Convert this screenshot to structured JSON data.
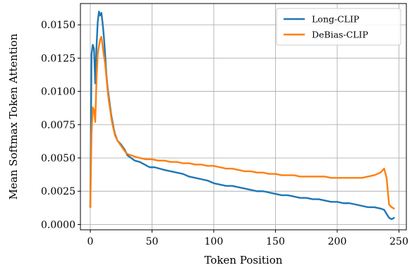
{
  "chart_data": {
    "type": "line",
    "xlabel": "Token Position",
    "ylabel": "Mean Softmax Token Attention",
    "xlim": [
      -8,
      256
    ],
    "ylim": [
      -0.0004,
      0.0166
    ],
    "xticks": [
      0,
      50,
      100,
      150,
      200,
      250
    ],
    "xtick_labels": [
      "0",
      "50",
      "100",
      "150",
      "200",
      "250"
    ],
    "yticks": [
      0.0,
      0.0025,
      0.005,
      0.0075,
      0.01,
      0.0125,
      0.015
    ],
    "ytick_labels": [
      "0.0000",
      "0.0025",
      "0.0050",
      "0.0075",
      "0.0100",
      "0.0125",
      "0.0150"
    ],
    "grid": true,
    "legend_position": "top-right",
    "series": [
      {
        "name": "Long-CLIP",
        "color": "#1f77b4",
        "points": [
          [
            0,
            0.0013
          ],
          [
            1,
            0.0128
          ],
          [
            2,
            0.0135
          ],
          [
            3,
            0.0132
          ],
          [
            4,
            0.0106
          ],
          [
            5,
            0.0133
          ],
          [
            6,
            0.0152
          ],
          [
            7,
            0.016
          ],
          [
            8,
            0.0157
          ],
          [
            9,
            0.0159
          ],
          [
            10,
            0.0151
          ],
          [
            11,
            0.0141
          ],
          [
            12,
            0.0128
          ],
          [
            13,
            0.0113
          ],
          [
            14,
            0.0103
          ],
          [
            15,
            0.0096
          ],
          [
            16,
            0.0089
          ],
          [
            17,
            0.0082
          ],
          [
            18,
            0.0077
          ],
          [
            19,
            0.0072
          ],
          [
            20,
            0.0068
          ],
          [
            22,
            0.0063
          ],
          [
            25,
            0.006
          ],
          [
            28,
            0.0056
          ],
          [
            30,
            0.0052
          ],
          [
            33,
            0.005
          ],
          [
            36,
            0.0048
          ],
          [
            40,
            0.0047
          ],
          [
            44,
            0.0045
          ],
          [
            48,
            0.0043
          ],
          [
            52,
            0.0043
          ],
          [
            56,
            0.0042
          ],
          [
            60,
            0.0041
          ],
          [
            65,
            0.004
          ],
          [
            70,
            0.0039
          ],
          [
            75,
            0.0038
          ],
          [
            80,
            0.0036
          ],
          [
            85,
            0.0035
          ],
          [
            90,
            0.0034
          ],
          [
            95,
            0.0033
          ],
          [
            100,
            0.0031
          ],
          [
            105,
            0.003
          ],
          [
            110,
            0.0029
          ],
          [
            115,
            0.0029
          ],
          [
            120,
            0.0028
          ],
          [
            125,
            0.0027
          ],
          [
            130,
            0.0026
          ],
          [
            135,
            0.0025
          ],
          [
            140,
            0.0025
          ],
          [
            145,
            0.0024
          ],
          [
            150,
            0.0023
          ],
          [
            155,
            0.0022
          ],
          [
            160,
            0.0022
          ],
          [
            165,
            0.0021
          ],
          [
            170,
            0.002
          ],
          [
            175,
            0.002
          ],
          [
            180,
            0.0019
          ],
          [
            185,
            0.0019
          ],
          [
            190,
            0.0018
          ],
          [
            195,
            0.0017
          ],
          [
            200,
            0.0017
          ],
          [
            205,
            0.0016
          ],
          [
            210,
            0.0016
          ],
          [
            215,
            0.0015
          ],
          [
            220,
            0.0014
          ],
          [
            225,
            0.0013
          ],
          [
            230,
            0.0013
          ],
          [
            235,
            0.0012
          ],
          [
            238,
            0.0011
          ],
          [
            240,
            0.0008
          ],
          [
            242,
            0.0005
          ],
          [
            244,
            0.0004
          ],
          [
            246,
            0.0005
          ]
        ]
      },
      {
        "name": "DeBias-CLIP",
        "color": "#ff7f0e",
        "points": [
          [
            0,
            0.0013
          ],
          [
            1,
            0.0068
          ],
          [
            2,
            0.0088
          ],
          [
            3,
            0.0086
          ],
          [
            4,
            0.0077
          ],
          [
            5,
            0.0108
          ],
          [
            6,
            0.0128
          ],
          [
            7,
            0.0134
          ],
          [
            8,
            0.0139
          ],
          [
            9,
            0.0141
          ],
          [
            10,
            0.0134
          ],
          [
            11,
            0.0127
          ],
          [
            12,
            0.0121
          ],
          [
            13,
            0.0111
          ],
          [
            14,
            0.0101
          ],
          [
            15,
            0.0093
          ],
          [
            16,
            0.0087
          ],
          [
            17,
            0.008
          ],
          [
            18,
            0.0075
          ],
          [
            19,
            0.0071
          ],
          [
            20,
            0.0067
          ],
          [
            22,
            0.0063
          ],
          [
            25,
            0.0059
          ],
          [
            28,
            0.0055
          ],
          [
            30,
            0.0053
          ],
          [
            33,
            0.0052
          ],
          [
            36,
            0.0051
          ],
          [
            40,
            0.005
          ],
          [
            45,
            0.0049
          ],
          [
            50,
            0.0049
          ],
          [
            55,
            0.0048
          ],
          [
            60,
            0.0048
          ],
          [
            65,
            0.0047
          ],
          [
            70,
            0.0047
          ],
          [
            75,
            0.0046
          ],
          [
            80,
            0.0046
          ],
          [
            85,
            0.0045
          ],
          [
            90,
            0.0045
          ],
          [
            95,
            0.0044
          ],
          [
            100,
            0.0044
          ],
          [
            105,
            0.0043
          ],
          [
            110,
            0.0042
          ],
          [
            115,
            0.0042
          ],
          [
            120,
            0.0041
          ],
          [
            125,
            0.004
          ],
          [
            130,
            0.004
          ],
          [
            135,
            0.0039
          ],
          [
            140,
            0.0039
          ],
          [
            145,
            0.0038
          ],
          [
            150,
            0.0038
          ],
          [
            155,
            0.0037
          ],
          [
            160,
            0.0037
          ],
          [
            165,
            0.0037
          ],
          [
            170,
            0.0036
          ],
          [
            175,
            0.0036
          ],
          [
            180,
            0.0036
          ],
          [
            185,
            0.0036
          ],
          [
            190,
            0.0036
          ],
          [
            195,
            0.0035
          ],
          [
            200,
            0.0035
          ],
          [
            205,
            0.0035
          ],
          [
            210,
            0.0035
          ],
          [
            215,
            0.0035
          ],
          [
            220,
            0.0035
          ],
          [
            225,
            0.0036
          ],
          [
            230,
            0.0037
          ],
          [
            235,
            0.0039
          ],
          [
            238,
            0.0042
          ],
          [
            240,
            0.0035
          ],
          [
            241,
            0.0025
          ],
          [
            242,
            0.0015
          ],
          [
            244,
            0.0013
          ],
          [
            246,
            0.0012
          ]
        ]
      }
    ]
  }
}
